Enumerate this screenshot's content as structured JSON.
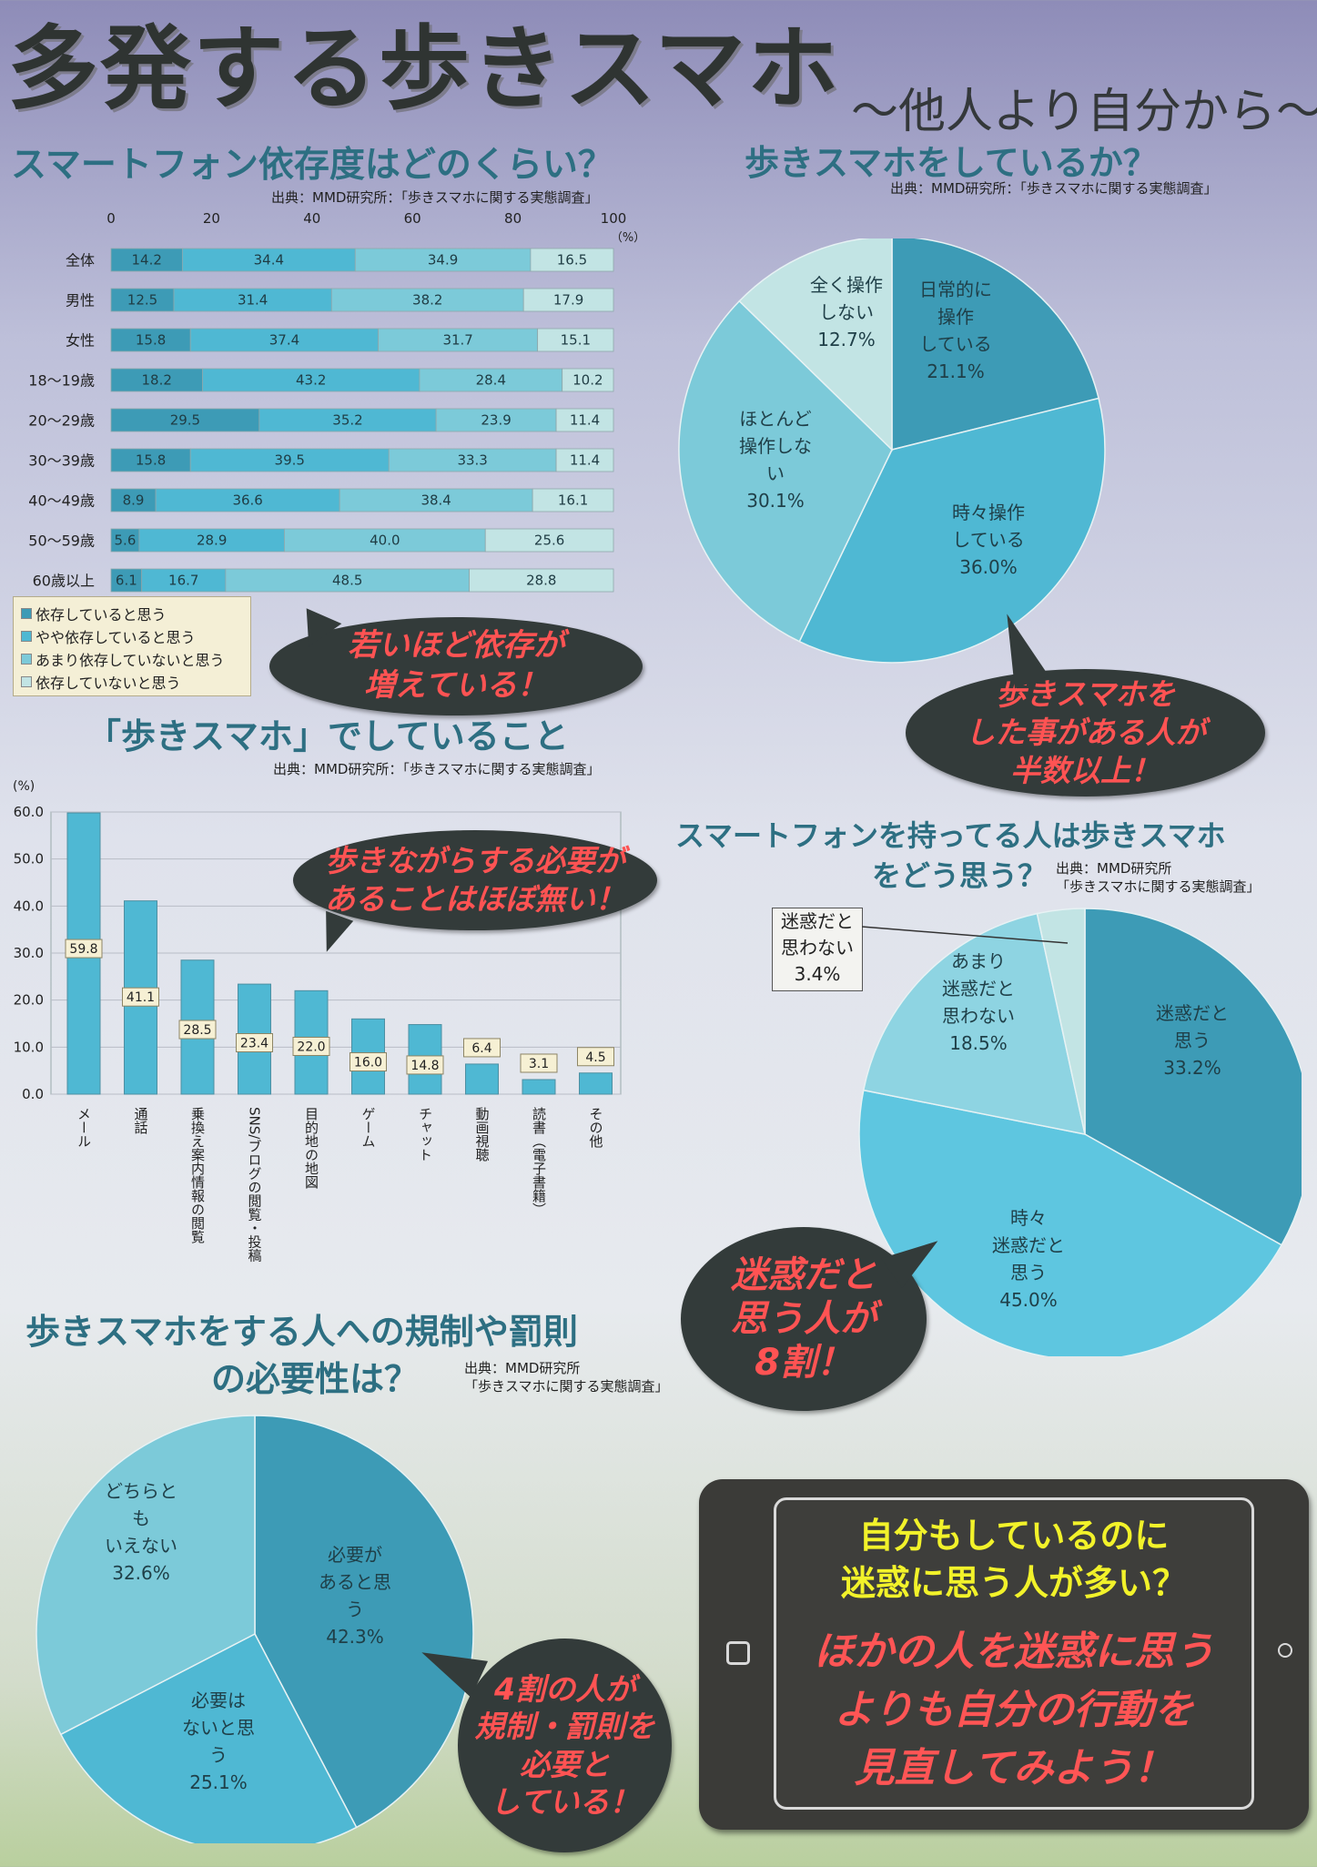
{
  "header": {
    "title": "多発する歩きスマホ",
    "subtitle": "～他人より自分から～"
  },
  "sections": {
    "dependency": {
      "title": "スマートフォン依存度はどのくらい？",
      "source": "出典：MMD研究所：「歩きスマホに関する実態調査」"
    },
    "walking": {
      "title": "歩きスマホをしているか？",
      "source": "出典：MMD研究所：「歩きスマホに関する実態調査」"
    },
    "activities": {
      "title": "「歩きスマホ」でしていること",
      "source": "出典：MMD研究所：「歩きスマホに関する実態調査」"
    },
    "opinion": {
      "title_line1": "スマートフォンを持ってる人は歩きスマホ",
      "title_line2": "をどう思う？",
      "source_line1": "出典：MMD研究所",
      "source_line2": "「歩きスマホに関する実態調査」"
    },
    "regulation": {
      "title_line1": "歩きスマホをする人への規制や罰則",
      "title_line2": "の必要性は？",
      "source_line1": "出典：MMD研究所",
      "source_line2": "「歩きスマホに関する実態調査」"
    }
  },
  "bubbles": {
    "young": [
      "若いほど依存が",
      "増えている！"
    ],
    "half": [
      "歩きスマホを",
      "した事がある人が",
      "半数以上！"
    ],
    "unnecessary": [
      "歩きながらする必要が",
      "あることはほぼ無い！"
    ],
    "eighty": [
      "迷惑だと",
      "思う人が",
      "8割！"
    ],
    "forty": [
      "4割の人が",
      "規制・罰則を",
      "必要と",
      "している！"
    ]
  },
  "tablet": {
    "yellow": [
      "自分もしているのに",
      "迷惑に思う人が多い？"
    ],
    "red": [
      "ほかの人を迷惑に思う",
      "よりも自分の行動を",
      "見直してみよう！"
    ]
  },
  "colors": {
    "c1": "#3d9bb6",
    "c2": "#4fb8d3",
    "c3": "#7ccad9",
    "c4": "#c2e4e4",
    "bubble": "#333b3a",
    "bubble_text": "#ff5353",
    "title": "#2d6f82"
  },
  "chart_data": [
    {
      "type": "bar",
      "orientation": "horizontal",
      "stacked": true,
      "categories": [
        "全体",
        "男性",
        "女性",
        "18～19歳",
        "20～29歳",
        "30～39歳",
        "40～49歳",
        "50～59歳",
        "60歳以上"
      ],
      "series": [
        {
          "name": "依存していると思う",
          "values": [
            14.2,
            12.5,
            15.8,
            18.2,
            29.5,
            15.8,
            8.9,
            5.6,
            6.1
          ]
        },
        {
          "name": "やや依存していると思う",
          "values": [
            34.4,
            31.4,
            37.4,
            43.2,
            35.2,
            39.5,
            36.6,
            28.9,
            16.7
          ]
        },
        {
          "name": "あまり依存していないと思う",
          "values": [
            34.9,
            38.2,
            31.7,
            28.4,
            23.9,
            33.3,
            38.4,
            40.0,
            48.5
          ]
        },
        {
          "name": "依存していないと思う",
          "values": [
            16.5,
            17.9,
            15.1,
            10.2,
            11.4,
            11.4,
            16.1,
            25.6,
            28.8
          ]
        }
      ],
      "xticks": [
        "0",
        "20",
        "40",
        "60",
        "80",
        "100"
      ],
      "unit": "（%）",
      "xlim": [
        0,
        100
      ],
      "legend_position": "bottom-left"
    },
    {
      "type": "pie",
      "slices": [
        {
          "label": [
            "日常的に",
            "操作",
            "している",
            "21.1%"
          ],
          "value": 21.1
        },
        {
          "label": [
            "時々操作",
            "している",
            "36.0%"
          ],
          "value": 36.0
        },
        {
          "label": [
            "ほとんど",
            "操作しな",
            "い",
            "30.1%"
          ],
          "value": 30.1
        },
        {
          "label": [
            "全く操作",
            "しない",
            "12.7%"
          ],
          "value": 12.7
        }
      ]
    },
    {
      "type": "bar",
      "categories": [
        "メール",
        "通話",
        "乗換え案内情報の閲覧",
        "SNS/ブログの閲覧・投稿",
        "目的地の地図",
        "ゲーム",
        "チャット",
        "動画視聴",
        "読書（電子書籍）",
        "その他"
      ],
      "values": [
        59.8,
        41.1,
        28.5,
        23.4,
        22.0,
        16.0,
        14.8,
        6.4,
        3.1,
        4.5
      ],
      "value_labels": [
        "59.8",
        "41.1",
        "28.5",
        "23.4",
        "22.0",
        "16.0",
        "14.8",
        "6.4",
        "3.1",
        "4.5"
      ],
      "yticks": [
        "0.0",
        "10.0",
        "20.0",
        "30.0",
        "40.0",
        "50.0",
        "60.0"
      ],
      "ylabel": "(%)",
      "ylim": [
        0,
        60
      ],
      "grid": true
    },
    {
      "type": "pie",
      "slices": [
        {
          "label": [
            "迷惑だと",
            "思う",
            "33.2%"
          ],
          "value": 33.2
        },
        {
          "label": [
            "時々",
            "迷惑だと",
            "思う",
            "45.0%"
          ],
          "value": 45.0
        },
        {
          "label": [
            "あまり",
            "迷惑だと",
            "思わない",
            "18.5%"
          ],
          "value": 18.5
        },
        {
          "label": [
            "迷惑だと",
            "思わない",
            "3.4%"
          ],
          "value": 3.4
        }
      ]
    },
    {
      "type": "pie",
      "slices": [
        {
          "label": [
            "必要が",
            "あると思",
            "う",
            "42.3%"
          ],
          "value": 42.3
        },
        {
          "label": [
            "必要は",
            "ないと思",
            "う",
            "25.1%"
          ],
          "value": 25.1
        },
        {
          "label": [
            "どちらと",
            "も",
            "いえない",
            "32.6%"
          ],
          "value": 32.6
        }
      ]
    }
  ]
}
